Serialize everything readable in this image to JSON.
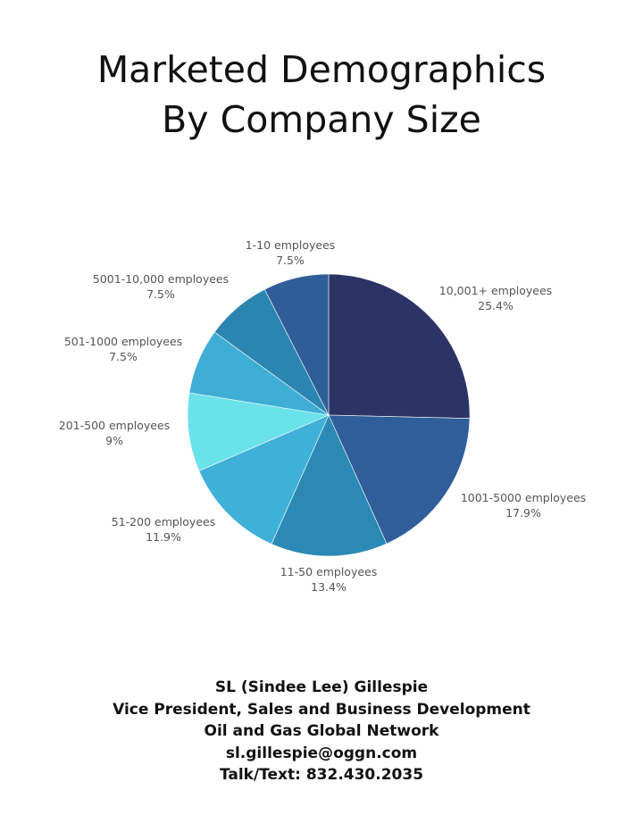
{
  "header": {
    "title_line1": "Marketed Demographics",
    "title_line2": "By Company Size"
  },
  "chart_data": {
    "type": "pie",
    "title": "Marketed Demographics By Company Size",
    "start": "12 o'clock, clockwise",
    "slices": [
      {
        "label": "10,001+ employees",
        "value": 25.4,
        "value_label": "25.4%",
        "color": "#2c3466"
      },
      {
        "label": "1001-5000 employees",
        "value": 17.9,
        "value_label": "17.9%",
        "color": "#2f5e9a"
      },
      {
        "label": "11-50 employees",
        "value": 13.4,
        "value_label": "13.4%",
        "color": "#2b8ab5"
      },
      {
        "label": "51-200 employees",
        "value": 11.9,
        "value_label": "11.9%",
        "color": "#3fb0d8"
      },
      {
        "label": "201-500 employees",
        "value": 9,
        "value_label": "9%",
        "color": "#6ae2e9"
      },
      {
        "label": "501-1000 employees",
        "value": 7.5,
        "value_label": "7.5%",
        "color": "#3eaed6"
      },
      {
        "label": "5001-10,000 employees",
        "value": 7.5,
        "value_label": "7.5%",
        "color": "#2b85b0"
      },
      {
        "label": "1-10 employees",
        "value": 7.5,
        "value_label": "7.5%",
        "color": "#2f5d98"
      }
    ]
  },
  "contact": {
    "name": "SL (Sindee Lee) Gillespie",
    "role": "Vice President, Sales and Business Development",
    "company": "Oil and Gas Global Network",
    "email": "sl.gillespie@oggn.com",
    "phone": "Talk/Text: 832.430.2035"
  }
}
